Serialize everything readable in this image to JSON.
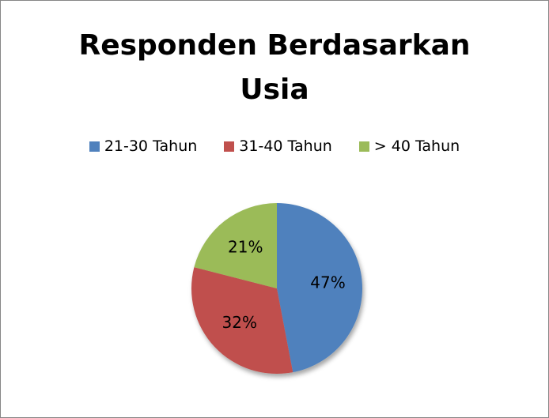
{
  "chart_data": {
    "type": "pie",
    "title": "Responden Berdasarkan Usia",
    "categories": [
      "21-30 Tahun",
      "31-40 Tahun",
      "> 40 Tahun"
    ],
    "values": [
      47,
      32,
      21
    ],
    "value_labels": [
      "47%",
      "32%",
      "21%"
    ],
    "colors": [
      "#4f81bd",
      "#c0504d",
      "#9bbb59"
    ],
    "legend": "top"
  }
}
